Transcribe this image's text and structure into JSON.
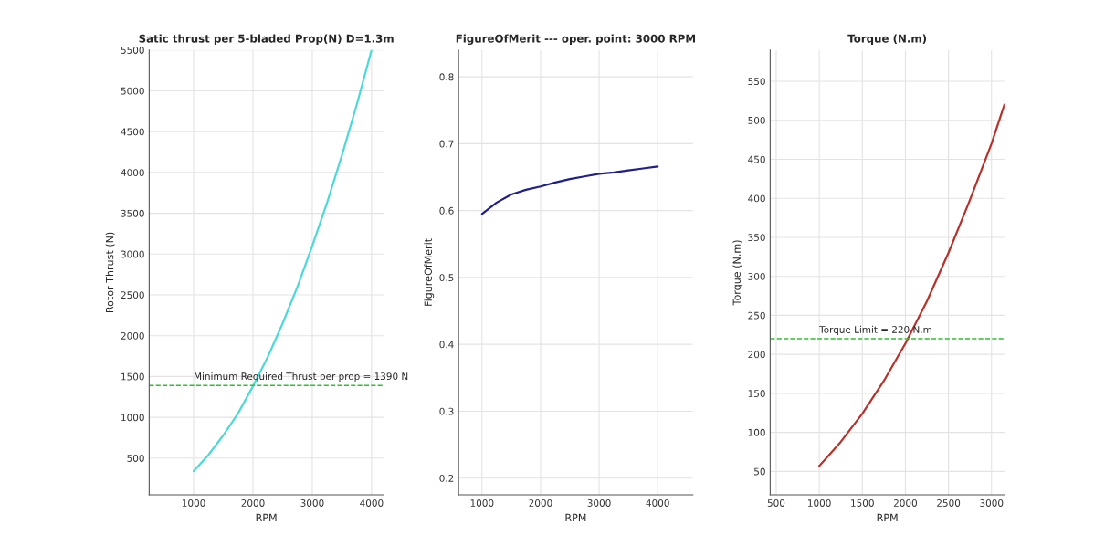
{
  "chart_data": [
    {
      "type": "line",
      "title": "Satic thrust per 5-bladed Prop(N) D=1.3m",
      "xlabel": "RPM",
      "ylabel": "Rotor Thrust (N)",
      "x": [
        1000,
        1250,
        1500,
        1750,
        2000,
        2250,
        2500,
        2750,
        3000,
        3250,
        3500,
        3750,
        4000
      ],
      "series": [
        {
          "color": "#4fd8d8",
          "values": [
            340,
            540,
            780,
            1050,
            1380,
            1740,
            2150,
            2600,
            3100,
            3630,
            4210,
            4830,
            5500
          ]
        }
      ],
      "xlim": [
        250,
        4200
      ],
      "xticks": [
        1000,
        2000,
        3000,
        4000
      ],
      "ylim": [
        50,
        5500
      ],
      "yticks": [
        500,
        1000,
        1500,
        2000,
        2500,
        3000,
        3500,
        4000,
        4500,
        5000,
        5500
      ],
      "ref_lines": [
        {
          "axis": "y",
          "value": 1390,
          "label": "Minimum Required Thrust per prop = 1390 N",
          "color": "#2ec02e",
          "line_style": "dashed"
        }
      ],
      "grid": true
    },
    {
      "type": "line",
      "title": "FigureOfMerit --- oper. point: 3000 RPM",
      "xlabel": "RPM",
      "ylabel": "FigureOfMerit",
      "x": [
        1000,
        1250,
        1500,
        1750,
        2000,
        2250,
        2500,
        2750,
        3000,
        3250,
        3500,
        3750,
        4000
      ],
      "series": [
        {
          "color": "#20208a",
          "values": [
            0.595,
            0.612,
            0.624,
            0.631,
            0.636,
            0.642,
            0.647,
            0.651,
            0.655,
            0.657,
            0.66,
            0.663,
            0.666
          ]
        }
      ],
      "xlim": [
        600,
        4600
      ],
      "xticks": [
        1000,
        2000,
        3000,
        4000
      ],
      "ylim": [
        0.175,
        0.84
      ],
      "yticks": [
        0.2,
        0.3,
        0.4,
        0.5,
        0.6,
        0.7,
        0.8
      ],
      "grid": true
    },
    {
      "type": "line",
      "title": "Torque (N.m)",
      "xlabel": "RPM",
      "ylabel": "Torque (N.m)",
      "x": [
        1000,
        1250,
        1500,
        1750,
        2000,
        2250,
        2500,
        2750,
        3000,
        3150
      ],
      "series": [
        {
          "color": "#b8322c",
          "values": [
            57,
            88,
            124,
            166,
            214,
            268,
            330,
            398,
            470,
            520
          ]
        }
      ],
      "xlim": [
        430,
        3150
      ],
      "xticks": [
        500,
        1000,
        1500,
        2000,
        2500,
        3000
      ],
      "ylim": [
        20,
        590
      ],
      "yticks": [
        50,
        100,
        150,
        200,
        250,
        300,
        350,
        400,
        450,
        500,
        550
      ],
      "ref_lines": [
        {
          "axis": "y",
          "value": 220,
          "label": "Torque Limit = 220 N.m",
          "color": "#2ec02e",
          "line_style": "dashed"
        }
      ],
      "grid": true
    }
  ]
}
